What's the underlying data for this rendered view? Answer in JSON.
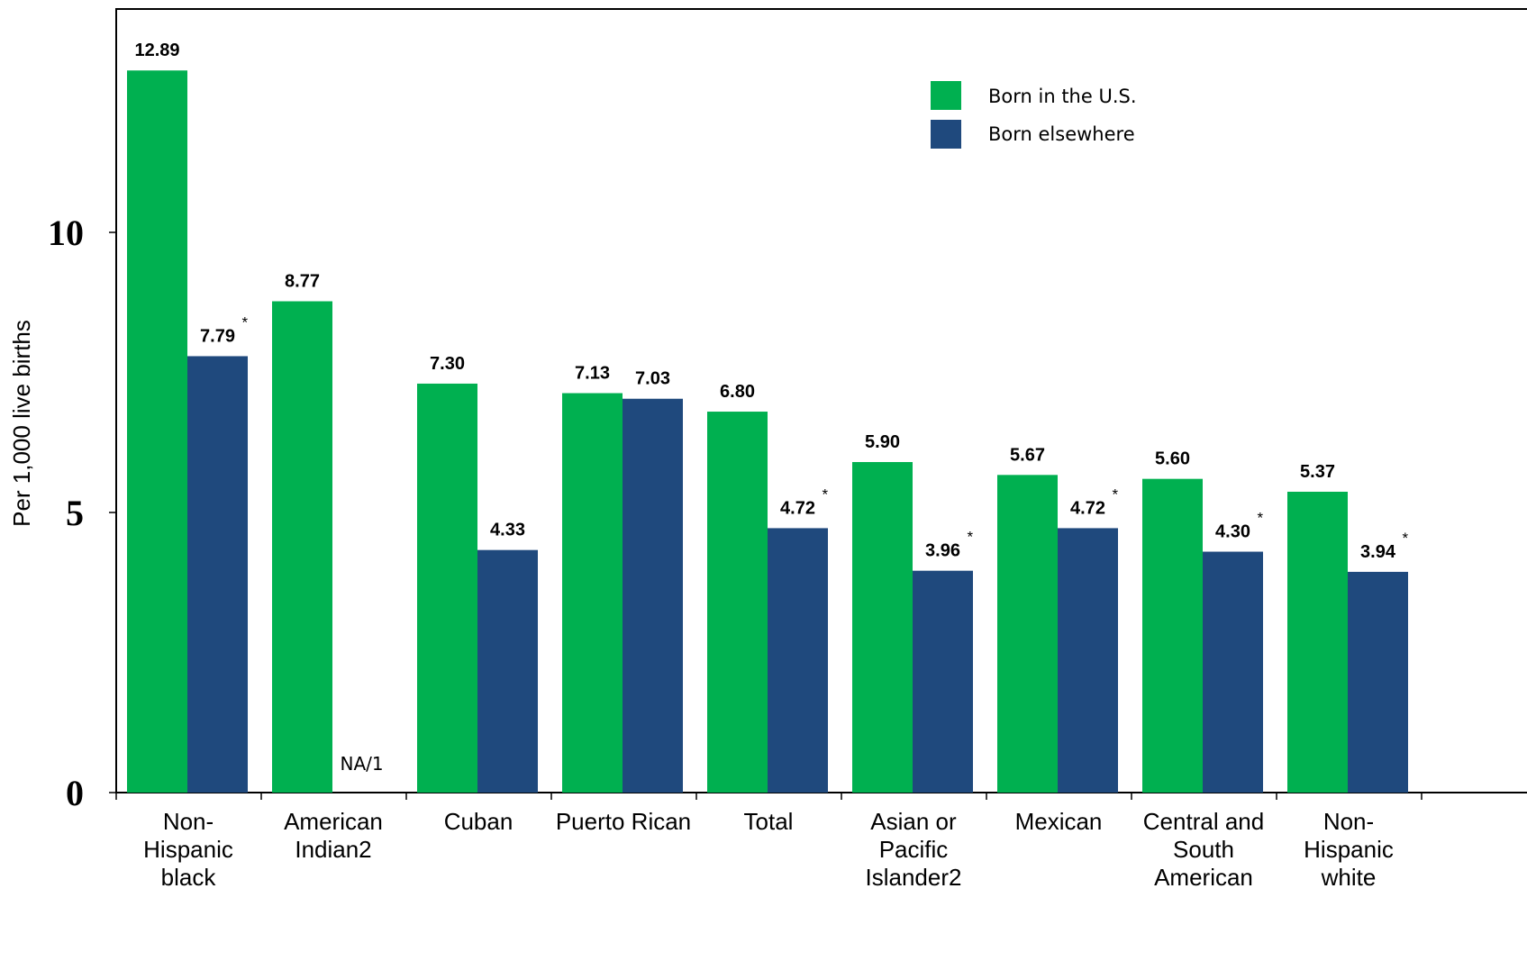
{
  "chart_data": {
    "type": "bar",
    "title": "",
    "xlabel": "",
    "ylabel": "Per 1,000 live births",
    "ylim": [
      0,
      13.5
    ],
    "yticks": [
      "0",
      "5",
      "10"
    ],
    "grid": false,
    "legend_position": "top-right",
    "categories": [
      [
        "Non-",
        "Hispanic",
        "black"
      ],
      [
        "American",
        "Indian2"
      ],
      [
        "Cuban"
      ],
      [
        "Puerto Rican"
      ],
      [
        "Total"
      ],
      [
        "Asian or",
        "Pacific",
        "Islander2"
      ],
      [
        "Mexican"
      ],
      [
        "Central and",
        "South",
        "American"
      ],
      [
        "Non-",
        "Hispanic",
        "white"
      ]
    ],
    "series": [
      {
        "name": "Born in the U.S.",
        "color": "#00b050",
        "values": [
          12.89,
          8.77,
          7.3,
          7.13,
          6.8,
          5.9,
          5.67,
          5.6,
          5.37
        ],
        "labels": [
          "12.89",
          "8.77",
          "7.30",
          "7.13",
          "6.80",
          "5.90",
          "5.67",
          "5.60",
          "5.37"
        ],
        "significant": [
          false,
          false,
          false,
          false,
          false,
          false,
          false,
          false,
          false
        ]
      },
      {
        "name": "Born elsewhere",
        "color": "#1f497d",
        "values": [
          7.79,
          null,
          4.33,
          7.03,
          4.72,
          3.96,
          4.72,
          4.3,
          3.94
        ],
        "labels": [
          "7.79",
          "NA/1",
          "4.33",
          "7.03",
          "4.72",
          "3.96",
          "4.72",
          "4.30",
          "3.94"
        ],
        "significant": [
          true,
          false,
          false,
          false,
          true,
          true,
          true,
          true,
          true
        ]
      }
    ],
    "significance_marker": "*"
  }
}
